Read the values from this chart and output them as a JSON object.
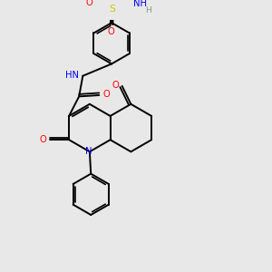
{
  "bg_color": "#e8e8e8",
  "atom_colors": {
    "C": "#000000",
    "N": "#0000ee",
    "O": "#ff0000",
    "S": "#cccc00",
    "H": "#7a9f7a"
  },
  "bond_color": "#000000",
  "figsize": [
    3.0,
    3.0
  ],
  "dpi": 100,
  "xlim": [
    0,
    10
  ],
  "ylim": [
    0,
    10
  ]
}
